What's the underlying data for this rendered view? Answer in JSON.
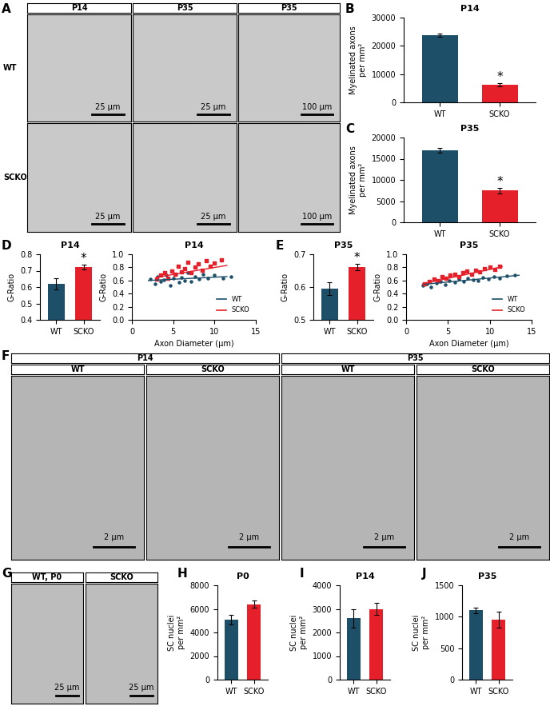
{
  "images": [
    {
      "panel": "A",
      "columns": [
        "P14",
        "P35",
        "P35"
      ],
      "rows": [
        "WT",
        "SCKO"
      ],
      "scale_bars": [
        [
          "25 µm",
          "25 µm",
          "100 µm"
        ],
        [
          "25 µm",
          "25 µm",
          "100 µm"
        ]
      ]
    },
    {
      "panel": "F",
      "groups": [
        "P14",
        "P35"
      ],
      "columns": [
        "WT",
        "SCKO",
        "WT",
        "SCKO"
      ],
      "scale_bars": [
        "2 µm",
        "2 µm",
        "2 µm",
        "2 µm"
      ]
    },
    {
      "panel": "G",
      "columns": [
        "WT, P0",
        "SCKO"
      ],
      "scale_bars": [
        "25 µm",
        "25 µm"
      ]
    }
  ],
  "chart_data": [
    {
      "panel": "B",
      "type": "bar",
      "title": "P14",
      "categories": [
        "WT",
        "SCKO"
      ],
      "values": [
        23700,
        6300
      ],
      "errors": [
        500,
        500
      ],
      "colors": [
        "#1d4f69",
        "#e5202a"
      ],
      "ylabel": "Myelinated axons\nper mm²",
      "ylim": [
        0,
        30000
      ],
      "yticks": [
        0,
        10000,
        20000,
        30000
      ],
      "annotations": [
        {
          "x": "SCKO",
          "text": "*"
        }
      ]
    },
    {
      "panel": "C",
      "type": "bar",
      "title": "P35",
      "categories": [
        "WT",
        "SCKO"
      ],
      "values": [
        17000,
        7500
      ],
      "errors": [
        500,
        700
      ],
      "colors": [
        "#1d4f69",
        "#e5202a"
      ],
      "ylabel": "Myelinated axons\nper mm²",
      "ylim": [
        0,
        20000
      ],
      "yticks": [
        0,
        5000,
        10000,
        15000,
        20000
      ],
      "annotations": [
        {
          "x": "SCKO",
          "text": "*"
        }
      ]
    },
    {
      "panel": "D",
      "type": "bar",
      "title": "P14",
      "categories": [
        "WT",
        "SCKO"
      ],
      "values": [
        0.62,
        0.72
      ],
      "errors": [
        0.035,
        0.015
      ],
      "colors": [
        "#1d4f69",
        "#e5202a"
      ],
      "ylabel": "G-Ratio",
      "ylim": [
        0.4,
        0.8
      ],
      "yticks": [
        0.4,
        0.5,
        0.6,
        0.7,
        0.8
      ],
      "annotations": [
        {
          "x": "SCKO",
          "text": "*"
        }
      ]
    },
    {
      "type": "scatter",
      "title": "P14",
      "xlabel": "Axon Diameter (μm)",
      "ylabel": "G-Ratio",
      "xlim": [
        0,
        15
      ],
      "xticks": [
        0,
        5,
        10,
        15
      ],
      "ylim": [
        0,
        1
      ],
      "yticks": [
        {
          "value": 0,
          "label": "0.0"
        },
        0.2,
        0.4,
        0.6,
        0.8,
        {
          "value": 1,
          "label": "1.0"
        }
      ],
      "legend": "lower right",
      "series": [
        {
          "name": "WT",
          "color": "#1d4f69",
          "marker": "o",
          "x": [
            2.2,
            2.8,
            3.1,
            3.5,
            3.9,
            4.2,
            4.6,
            5.0,
            5.3,
            5.7,
            6.0,
            6.4,
            6.8,
            7.2,
            7.6,
            8.1,
            8.6,
            9.2,
            10.0,
            11.0,
            12.0
          ],
          "values": [
            0.62,
            0.55,
            0.66,
            0.58,
            0.61,
            0.68,
            0.52,
            0.63,
            0.7,
            0.57,
            0.65,
            0.6,
            0.72,
            0.58,
            0.66,
            0.62,
            0.7,
            0.64,
            0.68,
            0.63,
            0.66
          ],
          "fit": {
            "x": [
              2,
              11.5
            ],
            "values": [
              0.6,
              0.66
            ]
          }
        },
        {
          "name": "SCKO",
          "color": "#e5202a",
          "marker": "s",
          "x": [
            3.0,
            3.5,
            4.0,
            4.4,
            4.8,
            5.2,
            5.6,
            6.0,
            6.4,
            6.8,
            7.2,
            7.6,
            8.0,
            8.5,
            9.0,
            9.5,
            10.0,
            10.8
          ],
          "values": [
            0.62,
            0.68,
            0.72,
            0.64,
            0.75,
            0.7,
            0.82,
            0.73,
            0.78,
            0.88,
            0.72,
            0.8,
            0.85,
            0.76,
            0.9,
            0.82,
            0.87,
            0.92
          ],
          "fit": {
            "x": [
              3,
              11.5
            ],
            "values": [
              0.65,
              0.83
            ]
          }
        }
      ]
    },
    {
      "panel": "E",
      "type": "bar",
      "title": "P35",
      "categories": [
        "WT",
        "SCKO"
      ],
      "values": [
        0.595,
        0.66
      ],
      "errors": [
        0.02,
        0.01
      ],
      "colors": [
        "#1d4f69",
        "#e5202a"
      ],
      "ylabel": "G-Ratio",
      "ylim": [
        0.5,
        0.7
      ],
      "yticks": [
        0.5,
        0.6,
        0.7
      ],
      "annotations": [
        {
          "x": "SCKO",
          "text": "*"
        }
      ]
    },
    {
      "type": "scatter",
      "title": "P35",
      "xlabel": "Axon Diameter (μm)",
      "ylabel": "G-Ratio",
      "xlim": [
        0,
        15
      ],
      "xticks": [
        0,
        5,
        10,
        15
      ],
      "ylim": [
        0,
        1
      ],
      "yticks": [
        {
          "value": 0,
          "label": "0.0"
        },
        0.2,
        0.4,
        0.6,
        0.8,
        {
          "value": 1,
          "label": "1.0"
        }
      ],
      "legend": "lower right",
      "series": [
        {
          "name": "WT",
          "color": "#1d4f69",
          "marker": "o",
          "x": [
            2.0,
            2.5,
            3.0,
            3.6,
            4.1,
            4.7,
            5.2,
            5.8,
            6.3,
            6.9,
            7.4,
            8.0,
            8.6,
            9.2,
            9.8,
            10.5,
            11.2,
            12.0,
            13.0
          ],
          "values": [
            0.52,
            0.55,
            0.5,
            0.56,
            0.58,
            0.54,
            0.6,
            0.57,
            0.62,
            0.59,
            0.63,
            0.61,
            0.6,
            0.65,
            0.62,
            0.66,
            0.64,
            0.67,
            0.68
          ],
          "fit": {
            "x": [
              2,
              13.5
            ],
            "values": [
              0.54,
              0.68
            ]
          }
        },
        {
          "name": "SCKO",
          "color": "#e5202a",
          "marker": "s",
          "x": [
            2.2,
            2.8,
            3.3,
            3.8,
            4.3,
            4.8,
            5.3,
            5.8,
            6.3,
            6.8,
            7.3,
            7.8,
            8.3,
            8.8,
            9.4,
            10.0,
            10.6,
            11.2
          ],
          "values": [
            0.55,
            0.58,
            0.62,
            0.6,
            0.66,
            0.63,
            0.68,
            0.7,
            0.66,
            0.72,
            0.74,
            0.69,
            0.76,
            0.73,
            0.78,
            0.8,
            0.77,
            0.82
          ],
          "fit": {
            "x": [
              2,
              11.5
            ],
            "values": [
              0.55,
              0.81
            ]
          }
        }
      ]
    },
    {
      "panel": "H",
      "type": "bar",
      "title": "P0",
      "categories": [
        "WT",
        "SCKO"
      ],
      "values": [
        5100,
        6400
      ],
      "errors": [
        400,
        300
      ],
      "colors": [
        "#1d4f69",
        "#e5202a"
      ],
      "ylabel": "SC nuclei\nper mm²",
      "ylim": [
        0,
        8000
      ],
      "yticks": [
        0,
        2000,
        4000,
        6000,
        8000
      ]
    },
    {
      "panel": "I",
      "type": "bar",
      "title": "P14",
      "categories": [
        "WT",
        "SCKO"
      ],
      "values": [
        2600,
        3000
      ],
      "errors": [
        400,
        250
      ],
      "colors": [
        "#1d4f69",
        "#e5202a"
      ],
      "ylabel": "SC nuclei\nper mm²",
      "ylim": [
        0,
        4000
      ],
      "yticks": [
        0,
        1000,
        2000,
        3000,
        4000
      ]
    },
    {
      "panel": "J",
      "type": "bar",
      "title": "P35",
      "categories": [
        "WT",
        "SCKO"
      ],
      "values": [
        1100,
        950
      ],
      "errors": [
        50,
        130
      ],
      "colors": [
        "#1d4f69",
        "#e5202a"
      ],
      "ylabel": "SC nuclei\nper mm²",
      "ylim": [
        0,
        1500
      ],
      "yticks": [
        0,
        500,
        1000,
        1500
      ]
    }
  ]
}
